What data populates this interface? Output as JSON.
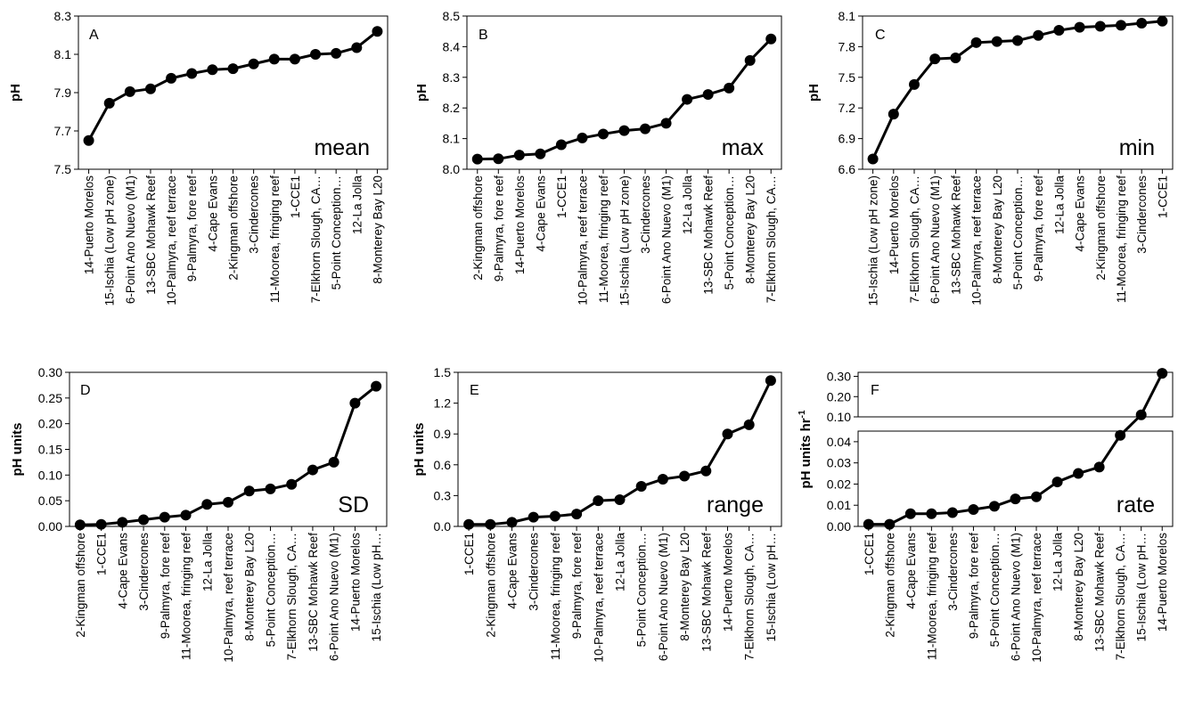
{
  "chart_data": [
    {
      "type": "line",
      "panel_letter": "A",
      "annotation": "mean",
      "ylabel": "pH",
      "ylim": [
        7.5,
        8.3
      ],
      "yticks": [
        "7.5",
        "7.7",
        "7.9",
        "8.1",
        "8.3"
      ],
      "categories": [
        "14-Puerto Morelos",
        "15-Ischia (Low pH zone)",
        "6-Point Ano Nuevo (M1)",
        "13-SBC Mohawk Reef",
        "10-Palmyra, reef terrace",
        "9-Palmyra, fore reef",
        "4-Cape Evans",
        "2-Kingman offshore",
        "3-Cindercones",
        "11-Moorea, fringing reef",
        "1-CCE1",
        "7-Elkhorn Slough, CA…",
        "5-Point Conception…",
        "12-La Jolla",
        "8-Monterey Bay L20"
      ],
      "values": [
        7.65,
        7.845,
        7.905,
        7.92,
        7.975,
        8.0,
        8.02,
        8.025,
        8.05,
        8.075,
        8.075,
        8.1,
        8.105,
        8.135,
        8.22
      ]
    },
    {
      "type": "line",
      "panel_letter": "B",
      "annotation": "max",
      "ylabel": "pH",
      "ylim": [
        8.0,
        8.5
      ],
      "yticks": [
        "8.0",
        "8.1",
        "8.2",
        "8.3",
        "8.4",
        "8.5"
      ],
      "categories": [
        "2-Kingman offshore",
        "9-Palmyra, fore reef",
        "14-Puerto Morelos",
        "4-Cape Evans",
        "1-CCE1",
        "10-Palmyra, reef terrace",
        "11-Moorea, fringing reef",
        "15-Ischia (Low pH zone)",
        "3-Cindercones",
        "6-Point Ano Nuevo (M1)",
        "12-La Jolla",
        "13-SBC Mohawk Reef",
        "5-Point Conception…",
        "8-Monterey Bay L20",
        "7-Elkhorn Slough, CA…"
      ],
      "values": [
        8.033,
        8.034,
        8.046,
        8.05,
        8.08,
        8.102,
        8.115,
        8.126,
        8.132,
        8.15,
        8.228,
        8.244,
        8.265,
        8.355,
        8.425
      ]
    },
    {
      "type": "line",
      "panel_letter": "C",
      "annotation": "min",
      "ylabel": "pH",
      "ylim": [
        6.6,
        8.1
      ],
      "yticks": [
        "6.6",
        "6.9",
        "7.2",
        "7.5",
        "7.8",
        "8.1"
      ],
      "categories": [
        "15-Ischia (Low pH zone)",
        "14-Puerto Morelos",
        "7-Elkhorn Slough, CA…",
        "6-Point Ano Nuevo (M1)",
        "13-SBC Mohawk Reef",
        "10-Palmyra, reef terrace",
        "8-Monterey Bay L20",
        "5-Point Conception…",
        "9-Palmyra, fore reef",
        "12-La Jolla",
        "4-Cape Evans",
        "2-Kingman offshore",
        "11-Moorea, fringing reef",
        "3-Cindercones",
        "1-CCE1"
      ],
      "values": [
        6.7,
        7.14,
        7.43,
        7.68,
        7.69,
        7.84,
        7.85,
        7.86,
        7.91,
        7.96,
        7.99,
        8.0,
        8.01,
        8.03,
        8.05
      ]
    },
    {
      "type": "line",
      "panel_letter": "D",
      "annotation": "SD",
      "ylabel": "pH units",
      "ylim": [
        0.0,
        0.3
      ],
      "yticks": [
        "0.00",
        "0.05",
        "0.10",
        "0.15",
        "0.20",
        "0.25",
        "0.30"
      ],
      "categories": [
        "2-Kingman offshore",
        "1-CCE1",
        "4-Cape Evans",
        "3-Cindercones",
        "9-Palmyra, fore reef",
        "11-Moorea, fringing reef",
        "12-La Jolla",
        "10-Palmyra, reef terrace",
        "8-Monterey Bay L20",
        "5-Point Conception…",
        "7-Elkhorn Slough, CA…",
        "13-SBC Mohawk Reef",
        "6-Point Ano Nuevo (M1)",
        "14-Puerto Morelos",
        "15-Ischia (Low pH…"
      ],
      "values": [
        0.003,
        0.004,
        0.008,
        0.013,
        0.018,
        0.022,
        0.043,
        0.047,
        0.069,
        0.073,
        0.082,
        0.11,
        0.125,
        0.24,
        0.273
      ]
    },
    {
      "type": "line",
      "panel_letter": "E",
      "annotation": "range",
      "ylabel": "pH units",
      "ylim": [
        0.0,
        1.5
      ],
      "yticks": [
        "0.0",
        "0.3",
        "0.6",
        "0.9",
        "1.2",
        "1.5"
      ],
      "categories": [
        "1-CCE1",
        "2-Kingman offshore",
        "4-Cape Evans",
        "3-Cindercones",
        "11-Moorea, fringing reef",
        "9-Palmyra, fore reef",
        "10-Palmyra, reef terrace",
        "12-La Jolla",
        "5-Point Conception…",
        "6-Point Ano Nuevo (M1)",
        "8-Monterey Bay L20",
        "13-SBC Mohawk Reef",
        "14-Puerto Morelos",
        "7-Elkhorn Slough, CA…",
        "15-Ischia (Low pH…"
      ],
      "values": [
        0.02,
        0.02,
        0.04,
        0.09,
        0.1,
        0.12,
        0.25,
        0.26,
        0.39,
        0.46,
        0.49,
        0.54,
        0.9,
        0.99,
        1.42
      ]
    },
    {
      "type": "line",
      "panel_letter": "F",
      "annotation": "rate",
      "ylabel": "pH units hr",
      "ylabel_superscript": "-1",
      "broken_axis": true,
      "ylim_lower": [
        0.0,
        0.045
      ],
      "ylim_upper": [
        0.1,
        0.32
      ],
      "yticks_lower": [
        "0.00",
        "0.01",
        "0.02",
        "0.03",
        "0.04"
      ],
      "yticks_upper": [
        "0.10",
        "0.20",
        "0.30"
      ],
      "categories": [
        "1-CCE1",
        "2-Kingman offshore",
        "4-Cape Evans",
        "11-Moorea, fringing reef",
        "3-Cindercones",
        "9-Palmyra, fore reef",
        "5-Point Conception…",
        "6-Point Ano Nuevo (M1)",
        "10-Palmyra, reef terrace",
        "12-La Jolla",
        "8-Monterey Bay L20",
        "13-SBC Mohawk Reef",
        "7-Elkhorn Slough, CA…",
        "15-Ischia (Low pH…",
        "14-Puerto Morelos"
      ],
      "values": [
        0.001,
        0.001,
        0.006,
        0.006,
        0.0065,
        0.008,
        0.0095,
        0.013,
        0.014,
        0.021,
        0.025,
        0.028,
        0.043,
        0.11,
        0.315
      ]
    }
  ]
}
